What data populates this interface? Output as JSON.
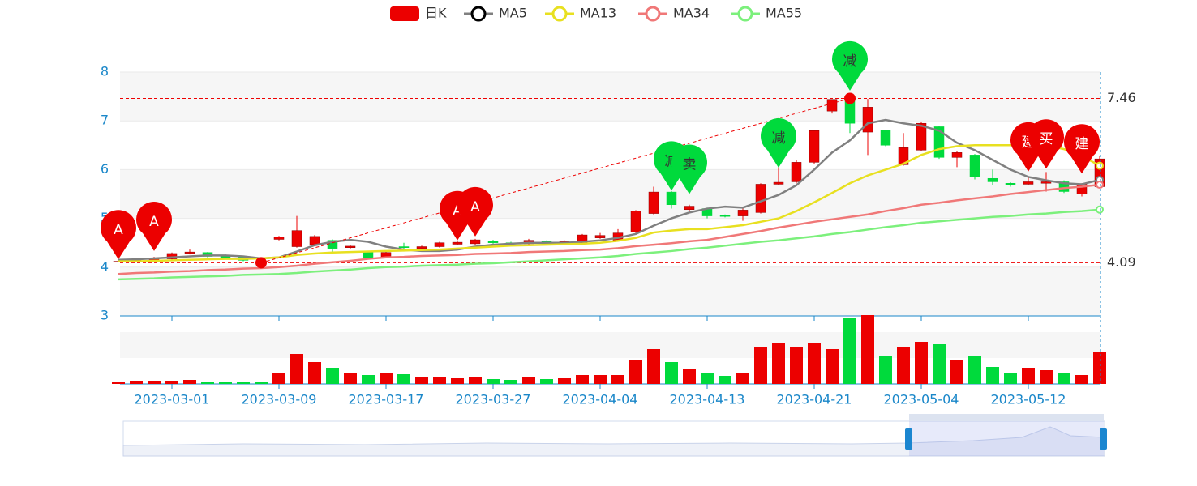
{
  "chart_data": {
    "type": "candlestick",
    "categories": [
      null,
      null,
      null,
      "2023-03-01",
      null,
      null,
      null,
      null,
      null,
      "2023-03-09",
      null,
      null,
      null,
      null,
      null,
      "2023-03-17",
      null,
      null,
      null,
      null,
      null,
      "2023-03-27",
      null,
      null,
      null,
      null,
      null,
      "2023-04-04",
      null,
      null,
      null,
      null,
      null,
      "2023-04-13",
      null,
      null,
      null,
      null,
      null,
      "2023-04-21",
      null,
      null,
      null,
      null,
      null,
      "2023-05-04",
      null,
      null,
      null,
      null,
      null,
      "2023-05-12",
      null,
      null,
      null,
      null
    ],
    "ylim": [
      3,
      8
    ],
    "yticks": [
      3,
      4,
      5,
      6,
      7,
      8
    ],
    "series": [
      {
        "name": "日K",
        "type": "candlestick",
        "color_up": "#ec0000",
        "color_down": "#00da3c",
        "open": [
          4.11,
          4.12,
          4.14,
          4.17,
          4.28,
          4.3,
          4.24,
          4.2,
          4.13,
          4.57,
          4.42,
          4.46,
          4.55,
          4.4,
          4.3,
          4.2,
          4.42,
          4.38,
          4.42,
          4.47,
          4.48,
          4.54,
          4.5,
          4.48,
          4.53,
          4.48,
          4.5,
          4.6,
          4.55,
          4.72,
          5.1,
          5.54,
          5.18,
          5.2,
          5.06,
          5.05,
          5.12,
          5.7,
          5.75,
          6.15,
          7.2,
          7.45,
          6.77,
          6.8,
          6.1,
          6.4,
          6.88,
          6.25,
          6.3,
          5.82,
          5.72,
          5.7,
          5.72,
          5.75,
          5.5,
          5.65
        ],
        "close": [
          4.12,
          4.14,
          4.19,
          4.28,
          4.31,
          4.22,
          4.2,
          4.14,
          4.11,
          4.62,
          4.75,
          4.63,
          4.38,
          4.43,
          4.18,
          4.3,
          4.4,
          4.42,
          4.5,
          4.51,
          4.56,
          4.5,
          4.48,
          4.55,
          4.48,
          4.53,
          4.66,
          4.65,
          4.7,
          5.15,
          5.54,
          5.28,
          5.25,
          5.05,
          5.04,
          5.17,
          5.7,
          5.74,
          6.15,
          6.8,
          7.44,
          6.95,
          7.28,
          6.5,
          6.45,
          6.95,
          6.25,
          6.35,
          5.85,
          5.75,
          5.68,
          5.75,
          5.75,
          5.55,
          5.7,
          6.22
        ],
        "low": [
          4.1,
          4.11,
          4.12,
          4.15,
          4.26,
          4.2,
          4.18,
          4.12,
          4.09,
          4.55,
          4.4,
          4.44,
          4.32,
          4.38,
          4.16,
          4.18,
          4.35,
          4.36,
          4.4,
          4.45,
          4.46,
          4.48,
          4.46,
          4.46,
          4.46,
          4.46,
          4.48,
          4.58,
          4.53,
          4.7,
          5.08,
          5.2,
          5.12,
          5.0,
          5.02,
          4.95,
          5.1,
          5.68,
          5.72,
          6.12,
          7.15,
          6.75,
          6.3,
          6.48,
          6.08,
          6.38,
          6.22,
          6.05,
          5.8,
          5.68,
          5.65,
          5.68,
          5.55,
          5.52,
          5.45,
          5.62
        ],
        "high": [
          4.14,
          4.16,
          4.21,
          4.3,
          4.36,
          4.31,
          4.26,
          4.22,
          4.15,
          4.64,
          5.05,
          4.66,
          4.57,
          4.45,
          4.31,
          4.32,
          4.5,
          4.44,
          4.52,
          4.53,
          4.58,
          4.56,
          4.52,
          4.58,
          4.55,
          4.55,
          4.68,
          4.7,
          4.78,
          5.17,
          5.65,
          5.56,
          5.28,
          5.22,
          5.08,
          5.2,
          5.72,
          6.05,
          6.2,
          6.82,
          7.44,
          7.46,
          7.45,
          6.82,
          6.75,
          6.98,
          6.9,
          6.38,
          6.32,
          6.0,
          5.74,
          5.85,
          5.95,
          5.78,
          5.72,
          6.28
        ]
      },
      {
        "name": "MA5",
        "type": "line",
        "color": "#808080",
        "values": [
          4.15,
          4.16,
          4.18,
          4.2,
          4.22,
          4.24,
          4.24,
          4.22,
          4.18,
          4.2,
          4.32,
          4.45,
          4.52,
          4.56,
          4.52,
          4.42,
          4.36,
          4.33,
          4.33,
          4.36,
          4.42,
          4.46,
          4.48,
          4.5,
          4.5,
          4.5,
          4.52,
          4.55,
          4.6,
          4.68,
          4.85,
          5.0,
          5.12,
          5.2,
          5.24,
          5.22,
          5.35,
          5.48,
          5.68,
          6.0,
          6.35,
          6.6,
          6.95,
          7.02,
          6.95,
          6.9,
          6.8,
          6.55,
          6.4,
          6.2,
          6.0,
          5.85,
          5.78,
          5.72,
          5.7,
          5.79
        ]
      },
      {
        "name": "MA13",
        "type": "line",
        "color": "#e8e020",
        "values": [
          4.12,
          4.12,
          4.13,
          4.14,
          4.15,
          4.16,
          4.17,
          4.17,
          4.18,
          4.2,
          4.25,
          4.28,
          4.3,
          4.31,
          4.32,
          4.33,
          4.34,
          4.35,
          4.36,
          4.38,
          4.4,
          4.42,
          4.44,
          4.45,
          4.46,
          4.47,
          4.48,
          4.5,
          4.54,
          4.6,
          4.71,
          4.75,
          4.78,
          4.78,
          4.82,
          4.86,
          4.93,
          5.0,
          5.15,
          5.33,
          5.52,
          5.72,
          5.88,
          6.0,
          6.12,
          6.3,
          6.42,
          6.48,
          6.5,
          6.5,
          6.5,
          6.5,
          6.5,
          6.42,
          6.28,
          6.08
        ]
      },
      {
        "name": "MA34",
        "type": "line",
        "color": "#f07878",
        "values": [
          3.86,
          3.88,
          3.89,
          3.91,
          3.92,
          3.94,
          3.95,
          3.97,
          3.98,
          4.0,
          4.03,
          4.07,
          4.1,
          4.13,
          4.17,
          4.2,
          4.21,
          4.23,
          4.24,
          4.25,
          4.27,
          4.28,
          4.29,
          4.31,
          4.32,
          4.33,
          4.35,
          4.36,
          4.39,
          4.43,
          4.46,
          4.49,
          4.53,
          4.56,
          4.62,
          4.68,
          4.74,
          4.81,
          4.87,
          4.93,
          4.98,
          5.03,
          5.08,
          5.15,
          5.21,
          5.28,
          5.32,
          5.37,
          5.41,
          5.45,
          5.5,
          5.54,
          5.58,
          5.62,
          5.65,
          5.69
        ]
      },
      {
        "name": "MA55",
        "type": "line",
        "color": "#7cf07c",
        "values": [
          3.75,
          3.76,
          3.77,
          3.79,
          3.8,
          3.81,
          3.82,
          3.84,
          3.85,
          3.86,
          3.88,
          3.91,
          3.93,
          3.95,
          3.98,
          4.0,
          4.01,
          4.03,
          4.04,
          4.05,
          4.07,
          4.08,
          4.1,
          4.12,
          4.14,
          4.16,
          4.18,
          4.2,
          4.23,
          4.27,
          4.3,
          4.33,
          4.37,
          4.4,
          4.44,
          4.48,
          4.52,
          4.55,
          4.59,
          4.63,
          4.68,
          4.72,
          4.77,
          4.82,
          4.86,
          4.91,
          4.94,
          4.97,
          5.0,
          5.03,
          5.05,
          5.08,
          5.1,
          5.13,
          5.15,
          5.18
        ]
      }
    ],
    "volume": {
      "ylim": [
        0,
        64
      ],
      "values": [
        2,
        4,
        4,
        4,
        5,
        3,
        3,
        3,
        3,
        13,
        37,
        27,
        20,
        14,
        11,
        13,
        12,
        8,
        8,
        7,
        8,
        6,
        5,
        8,
        6,
        7,
        11,
        11,
        11,
        30,
        43,
        27,
        18,
        14,
        10,
        14,
        46,
        51,
        46,
        51,
        43,
        82,
        85,
        34,
        46,
        52,
        49,
        30,
        34,
        21,
        14,
        20,
        17,
        13,
        11,
        40
      ]
    },
    "mark_lines": [
      7.46,
      4.09
    ],
    "pins": [
      {
        "index": 0,
        "value": 4.16,
        "label": "A",
        "color": "#ec0000"
      },
      {
        "index": 2,
        "value": 4.33,
        "label": "A",
        "color": "#ec0000"
      },
      {
        "index": 19,
        "value": 4.55,
        "label": "A",
        "color": "#ec0000"
      },
      {
        "index": 20,
        "value": 4.63,
        "label": "A",
        "color": "#ec0000"
      },
      {
        "index": 31,
        "value": 5.57,
        "label": "减",
        "color": "#00da3c"
      },
      {
        "index": 32,
        "value": 5.5,
        "label": "卖",
        "color": "#00da3c"
      },
      {
        "index": 37,
        "value": 6.04,
        "label": "减",
        "color": "#00da3c"
      },
      {
        "index": 41,
        "value": 7.62,
        "label": "减",
        "color": "#00da3c"
      },
      {
        "index": 51,
        "value": 5.96,
        "label": "建",
        "color": "#ec0000"
      },
      {
        "index": 52,
        "value": 6.02,
        "label": "买",
        "color": "#ec0000"
      },
      {
        "index": 54,
        "value": 5.92,
        "label": "建",
        "color": "#ec0000"
      }
    ]
  }
}
